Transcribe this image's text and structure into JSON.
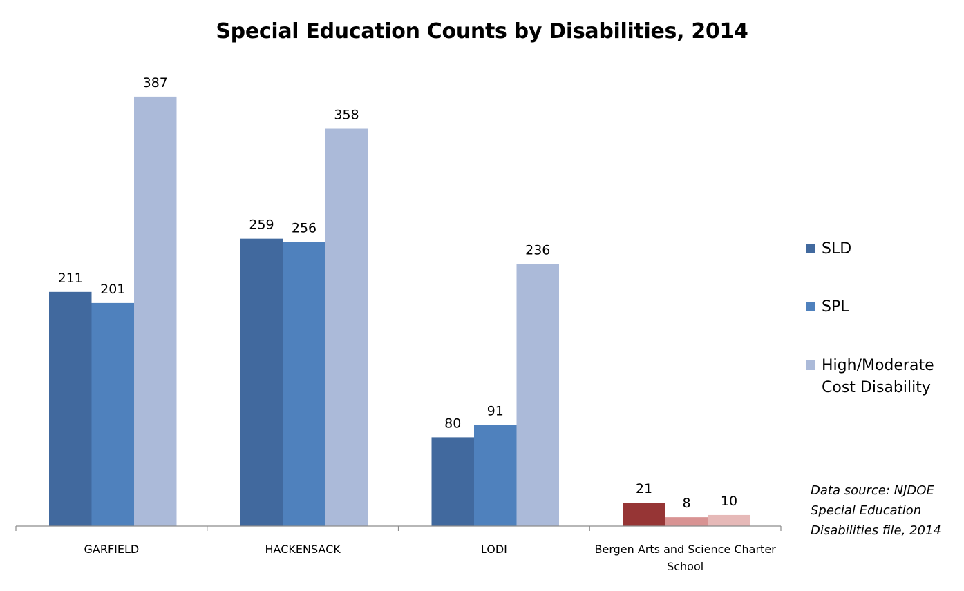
{
  "chart_data": {
    "type": "bar",
    "title": "Special Education Counts by Disabilities, 2014",
    "xlabel": "",
    "ylabel": "",
    "ylim": [
      0,
      400
    ],
    "grid": false,
    "categories": [
      "GARFIELD",
      "HACKENSACK",
      "LODI",
      "Bergen Arts and Science Charter School"
    ],
    "series": [
      {
        "name": "SLD",
        "values": [
          211,
          259,
          80,
          21
        ],
        "color": "#41699e",
        "highlight_color": "#963535"
      },
      {
        "name": "SPL",
        "values": [
          201,
          256,
          91,
          8
        ],
        "color": "#4f81bd",
        "highlight_color": "#d89393"
      },
      {
        "name": "High/Moderate Cost Disability",
        "values": [
          387,
          358,
          236,
          10
        ],
        "color": "#abbad9",
        "highlight_color": "#e6b9b8"
      }
    ],
    "highlight_category": "Bergen Arts and Science Charter School",
    "legend_position": "right",
    "annotation": "Data source: NJDOE Special Education Disabilities file, 2014"
  }
}
